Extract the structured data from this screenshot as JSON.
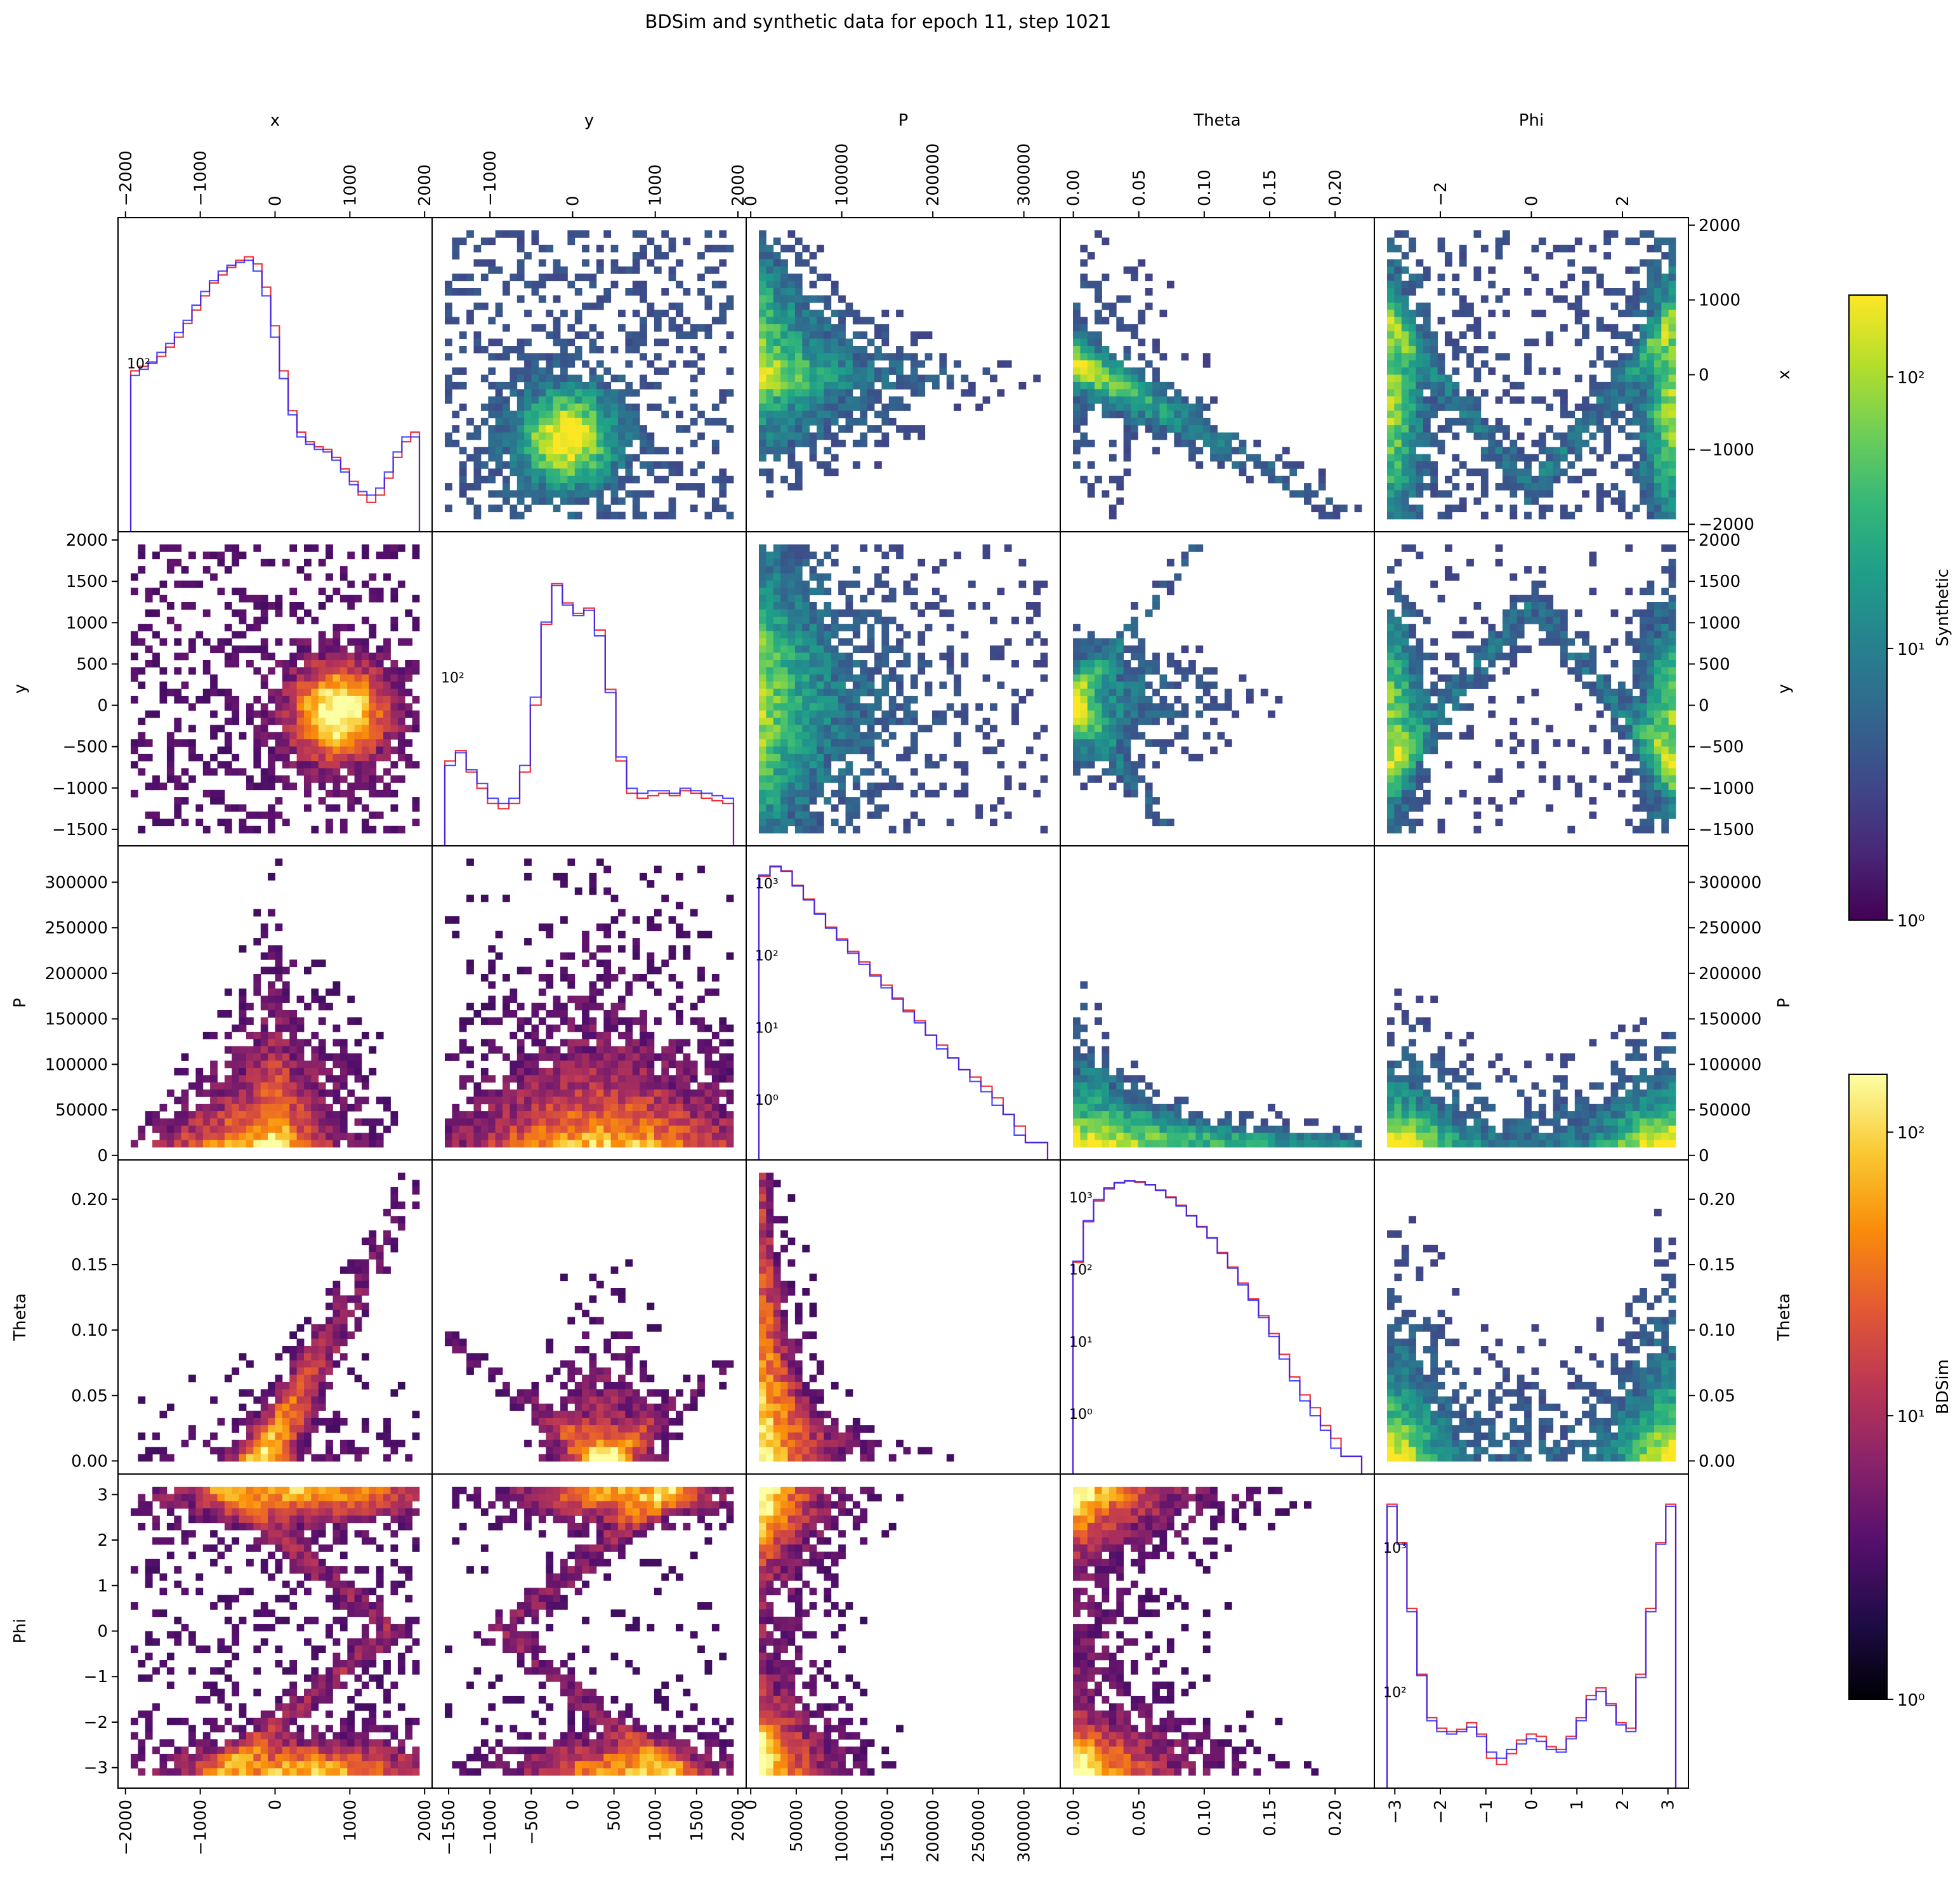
{
  "figure": {
    "title": "BDSim and synthetic data for epoch 11, step 1021"
  },
  "chart_data": {
    "type": "heatmap",
    "layout": "corner pair plot (5x5): upper triangle = Synthetic 2D histograms, lower triangle = BDSim 2D histograms, diagonal = 1D histograms of BDSim (red) and Synthetic (blue)",
    "variables": [
      "x",
      "y",
      "P",
      "Theta",
      "Phi"
    ],
    "axes": [
      {
        "name": "x",
        "ticks": [
          -2000,
          -1000,
          0,
          1000,
          2000
        ],
        "tick_labels": [
          "−2000",
          "−1000",
          "0",
          "1000",
          "2000"
        ],
        "range": [
          -2100,
          2100
        ]
      },
      {
        "name": "y",
        "ticks": [
          -1500,
          -1000,
          -500,
          0,
          500,
          1000,
          1500,
          2000
        ],
        "tick_labels": [
          "−1500",
          "−1000",
          "−500",
          "0",
          "500",
          "1000",
          "1500",
          "2000"
        ],
        "range": [
          -1700,
          2100
        ]
      },
      {
        "name": "P",
        "ticks": [
          0,
          50000,
          100000,
          150000,
          200000,
          250000,
          300000
        ],
        "tick_labels": [
          "0",
          "50000",
          "100000",
          "150000",
          "200000",
          "250000",
          "300000"
        ],
        "range": [
          -5000,
          340000
        ]
      },
      {
        "name": "Theta",
        "ticks": [
          0.0,
          0.05,
          0.1,
          0.15,
          0.2
        ],
        "tick_labels": [
          "0.00",
          "0.05",
          "0.10",
          "0.15",
          "0.20"
        ],
        "range": [
          -0.01,
          0.23
        ]
      },
      {
        "name": "Phi",
        "ticks": [
          -3,
          -2,
          -1,
          0,
          1,
          2,
          3
        ],
        "tick_labels": [
          "−3",
          "−2",
          "−1",
          "0",
          "1",
          "2",
          "3"
        ],
        "range": [
          -3.45,
          3.45
        ]
      }
    ],
    "top_tick_labels": {
      "x": [
        "−2000",
        "−1000",
        "0",
        "1000",
        "2000"
      ],
      "y": [
        "−1000",
        "0",
        "1000",
        "2000"
      ],
      "P": [
        "0",
        "100000",
        "200000",
        "300000"
      ],
      "Theta": [
        "0.00",
        "0.05",
        "0.10",
        "0.15",
        "0.20"
      ],
      "Phi": [
        "−2",
        "0",
        "2"
      ]
    },
    "diagonal": [
      {
        "variable": "x",
        "log": true,
        "tick_label": "10²",
        "bdsim": [
          95,
          98,
          100,
          105,
          112,
          120,
          132,
          145,
          160,
          175,
          185,
          195,
          205,
          210,
          200,
          170,
          130,
          95,
          72,
          62,
          58,
          56,
          55,
          52,
          48,
          44,
          40,
          38,
          40,
          45,
          52,
          58,
          62
        ],
        "synthetic": [
          92,
          96,
          101,
          108,
          115,
          124,
          135,
          150,
          165,
          178,
          190,
          198,
          202,
          205,
          190,
          160,
          120,
          90,
          70,
          60,
          57,
          55,
          54,
          51,
          47,
          43,
          41,
          40,
          42,
          47,
          54,
          60,
          60
        ]
      },
      {
        "variable": "y",
        "log": true,
        "tick_label": "10²",
        "bdsim": [
          100,
          105,
          95,
          88,
          82,
          80,
          82,
          95,
          130,
          190,
          230,
          210,
          200,
          205,
          185,
          140,
          100,
          86,
          84,
          85,
          86,
          85,
          87,
          86,
          84,
          83,
          82
        ],
        "synthetic": [
          98,
          104,
          96,
          90,
          84,
          82,
          84,
          98,
          135,
          192,
          228,
          208,
          198,
          203,
          180,
          138,
          102,
          88,
          86,
          87,
          87,
          86,
          88,
          87,
          86,
          85,
          84
        ]
      },
      {
        "variable": "P",
        "log": true,
        "tick_labels": [
          "10⁰",
          "10¹",
          "10²",
          "10³"
        ],
        "bdsim": [
          700,
          900,
          800,
          560,
          400,
          280,
          200,
          150,
          110,
          85,
          62,
          48,
          35,
          26,
          20,
          14,
          11,
          8,
          6,
          5,
          4,
          3,
          2,
          1.5,
          1,
          1
        ],
        "synthetic": [
          720,
          880,
          790,
          550,
          390,
          275,
          195,
          145,
          105,
          80,
          60,
          45,
          34,
          25,
          19,
          14,
          10,
          8,
          6,
          4.5,
          3.5,
          2.5,
          2,
          1.2,
          1,
          1
        ]
      },
      {
        "variable": "Theta",
        "log": true,
        "tick_labels": [
          "10⁰",
          "10¹",
          "10²",
          "10³"
        ],
        "bdsim": [
          80,
          200,
          320,
          420,
          480,
          500,
          490,
          460,
          410,
          350,
          290,
          230,
          180,
          140,
          100,
          72,
          50,
          35,
          24,
          16,
          10,
          6,
          4,
          3,
          2,
          1.5,
          1,
          1
        ],
        "synthetic": [
          82,
          205,
          330,
          430,
          485,
          505,
          495,
          462,
          405,
          345,
          285,
          228,
          178,
          138,
          98,
          70,
          48,
          34,
          23,
          15,
          9,
          5.5,
          3.5,
          2.5,
          1.8,
          1.2,
          1,
          1
        ]
      },
      {
        "variable": "Phi",
        "log": true,
        "tick_labels": [
          "10²",
          "10³"
        ],
        "bdsim": [
          900,
          600,
          300,
          150,
          95,
          85,
          82,
          84,
          90,
          80,
          62,
          58,
          65,
          75,
          80,
          78,
          70,
          68,
          78,
          95,
          120,
          130,
          110,
          90,
          85,
          150,
          300,
          600,
          900
        ],
        "synthetic": [
          880,
          590,
          290,
          148,
          92,
          82,
          80,
          82,
          86,
          78,
          66,
          62,
          68,
          72,
          76,
          74,
          68,
          66,
          76,
          92,
          115,
          125,
          108,
          88,
          82,
          145,
          290,
          590,
          880
        ]
      }
    ],
    "colorbars": [
      {
        "label": "Synthetic",
        "colormap": "viridis",
        "scale": "log",
        "range": [
          1,
          200
        ],
        "tick_labels": [
          "10⁰",
          "10¹",
          "10²"
        ]
      },
      {
        "label": "BDSim",
        "colormap": "inferno",
        "scale": "log",
        "range": [
          1,
          160
        ],
        "tick_labels": [
          "10⁰",
          "10¹",
          "10²"
        ]
      }
    ],
    "series_colors": {
      "bdsim": "#e8000b",
      "synthetic": "#1f1fff"
    },
    "grid": false
  }
}
